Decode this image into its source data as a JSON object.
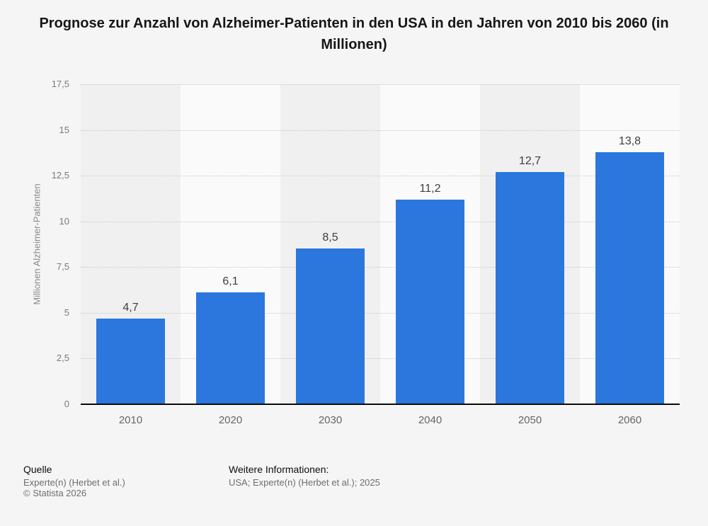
{
  "title": "Prognose zur Anzahl von Alzheimer-Patienten in den USA in den Jahren von 2010 bis 2060 (in Millionen)",
  "chart_data": {
    "type": "bar",
    "title": "Prognose zur Anzahl von Alzheimer-Patienten in den USA in den Jahren von 2010 bis 2060 (in Millionen)",
    "categories": [
      "2010",
      "2020",
      "2030",
      "2040",
      "2050",
      "2060"
    ],
    "values": [
      4.7,
      6.1,
      8.5,
      11.2,
      12.7,
      13.8
    ],
    "value_labels": [
      "4,7",
      "6,1",
      "8,5",
      "11,2",
      "12,7",
      "13,8"
    ],
    "xlabel": "",
    "ylabel": "Millionen Alzheimer-Patienten",
    "ylim": [
      0,
      17.5
    ],
    "y_ticks": [
      0,
      2.5,
      5,
      7.5,
      10,
      12.5,
      15,
      17.5
    ],
    "y_tick_labels": [
      "0",
      "2,5",
      "5",
      "7,5",
      "10",
      "12,5",
      "15",
      "17,5"
    ],
    "grid": "horizontal-dotted",
    "legend": "none",
    "bar_color": "#2b77dd",
    "band_colors": [
      "#f0f0f0",
      "#fafafa"
    ]
  },
  "footer": {
    "source_heading": "Quelle",
    "source_line1": "Experte(n) (Herbet et al.)",
    "source_line2": "© Statista 2026",
    "info_heading": "Weitere Informationen:",
    "info_line1": "USA; Experte(n) (Herbet et al.); 2025"
  }
}
